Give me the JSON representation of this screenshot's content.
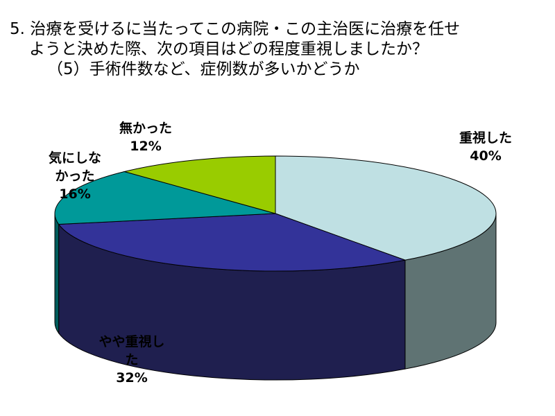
{
  "title_lines": [
    "5. 治療を受けるに当たってこの病院・この主治医に治療を任せ",
    "ようと決めた際、次の項目はどの程度重視しましたか？",
    "（5）手術件数など、症例数が多いかどうか"
  ],
  "chart_data": {
    "type": "pie",
    "title": "5. 治療を受けるに当たってこの病院・この主治医に治療を任せようと決めた際、次の項目はどの程度重視しましたか？ （5）手術件数など、症例数が多いかどうか",
    "legend": "none",
    "slices": [
      {
        "label": "重視した",
        "value": 40,
        "display": "40%",
        "top_color": "#bfe0e3",
        "side_color": "#5f7373"
      },
      {
        "label": "やや重視した",
        "value": 32,
        "display": "32%",
        "top_color": "#333399",
        "side_color": "#1f1f4f"
      },
      {
        "label": "気にしなかった",
        "value": 16,
        "display": "16%",
        "top_color": "#009999",
        "side_color": "#005c5c"
      },
      {
        "label": "無かった",
        "value": 12,
        "display": "12%",
        "top_color": "#99cc00",
        "side_color": "#5c7a00"
      }
    ]
  }
}
